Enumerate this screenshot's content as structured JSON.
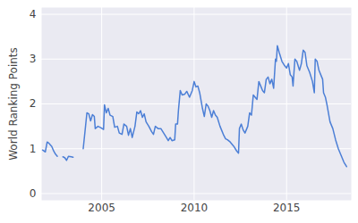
{
  "chart_data": {
    "type": "line",
    "y_label": "World Ranking Points",
    "x": [
      2001.8,
      2001.95,
      2002.05,
      2002.15,
      2002.3,
      2002.4,
      2002.5,
      2002.6,
      2002.8,
      2002.9,
      2003.0,
      2003.1,
      2003.2,
      2003.35,
      2003.45,
      2003.7,
      2004.0,
      2004.1,
      2004.2,
      2004.3,
      2004.4,
      2004.5,
      2004.6,
      2004.65,
      2004.8,
      2004.95,
      2005.1,
      2005.15,
      2005.25,
      2005.35,
      2005.45,
      2005.6,
      2005.7,
      2005.85,
      2005.95,
      2006.1,
      2006.2,
      2006.35,
      2006.45,
      2006.55,
      2006.65,
      2006.8,
      2006.9,
      2007.0,
      2007.1,
      2007.2,
      2007.3,
      2007.4,
      2007.55,
      2007.7,
      2007.8,
      2007.9,
      2008.05,
      2008.2,
      2008.35,
      2008.5,
      2008.6,
      2008.7,
      2008.8,
      2008.95,
      2009.0,
      2009.1,
      2009.15,
      2009.25,
      2009.35,
      2009.5,
      2009.6,
      2009.75,
      2009.9,
      2010.0,
      2010.1,
      2010.2,
      2010.3,
      2010.45,
      2010.55,
      2010.65,
      2010.75,
      2010.85,
      2010.95,
      2011.05,
      2011.15,
      2011.25,
      2011.4,
      2011.5,
      2011.6,
      2011.7,
      2011.8,
      2011.95,
      2012.05,
      2012.15,
      2012.3,
      2012.4,
      2012.45,
      2012.55,
      2012.65,
      2012.75,
      2012.9,
      2013.0,
      2013.1,
      2013.2,
      2013.3,
      2013.4,
      2013.5,
      2013.6,
      2013.7,
      2013.8,
      2013.9,
      2014.0,
      2014.1,
      2014.2,
      2014.3,
      2014.4,
      2014.45,
      2014.5,
      2014.6,
      2014.75,
      2014.9,
      2015.0,
      2015.1,
      2015.2,
      2015.3,
      2015.35,
      2015.45,
      2015.55,
      2015.7,
      2015.8,
      2015.9,
      2016.0,
      2016.1,
      2016.25,
      2016.4,
      2016.5,
      2016.55,
      2016.65,
      2016.75,
      2016.85,
      2016.95,
      2017.0,
      2017.1,
      2017.2,
      2017.35,
      2017.5,
      2017.65,
      2017.8,
      2017.95,
      2018.1,
      2018.25
    ],
    "series": [
      {
        "name": "World Ranking Points",
        "color": "#4c7fd6",
        "values": [
          0.97,
          0.93,
          1.15,
          1.12,
          1.05,
          0.95,
          0.88,
          0.83,
          null,
          0.82,
          0.8,
          0.74,
          0.83,
          0.82,
          0.81,
          null,
          1.0,
          1.4,
          1.8,
          1.78,
          1.62,
          1.76,
          1.72,
          1.45,
          1.5,
          1.47,
          1.43,
          1.98,
          1.8,
          1.9,
          1.75,
          1.72,
          1.48,
          1.5,
          1.35,
          1.32,
          1.55,
          1.5,
          1.3,
          1.45,
          1.25,
          1.5,
          1.82,
          1.78,
          1.85,
          1.7,
          1.78,
          1.6,
          1.5,
          1.38,
          1.32,
          1.5,
          1.45,
          1.45,
          1.35,
          1.25,
          1.18,
          1.25,
          1.18,
          1.2,
          1.55,
          1.55,
          1.85,
          2.3,
          2.2,
          2.22,
          2.28,
          2.15,
          2.3,
          2.5,
          2.38,
          2.4,
          2.25,
          1.9,
          1.72,
          2.0,
          1.95,
          1.85,
          1.7,
          1.85,
          1.75,
          1.7,
          1.5,
          1.4,
          1.3,
          1.22,
          1.2,
          1.15,
          1.1,
          1.05,
          0.95,
          0.9,
          1.45,
          1.55,
          1.42,
          1.35,
          1.5,
          1.8,
          1.75,
          2.2,
          2.15,
          2.1,
          2.5,
          2.4,
          2.3,
          2.25,
          2.55,
          2.6,
          2.45,
          2.55,
          2.35,
          3.0,
          2.95,
          3.3,
          3.15,
          2.95,
          2.85,
          2.8,
          2.9,
          2.65,
          2.6,
          2.4,
          3.0,
          2.95,
          2.75,
          2.9,
          3.2,
          3.15,
          2.85,
          2.7,
          2.5,
          2.25,
          3.0,
          2.95,
          2.75,
          2.65,
          2.55,
          2.25,
          2.15,
          1.95,
          1.6,
          1.45,
          1.2,
          1.0,
          0.85,
          0.7,
          0.6
        ]
      }
    ],
    "xlim": [
      2001.75,
      2018.5
    ],
    "ylim": [
      -0.15,
      4.15
    ],
    "xticks": [
      2005,
      2010,
      2015
    ],
    "yticks": [
      0,
      1,
      2,
      3,
      4
    ],
    "grid": true
  }
}
